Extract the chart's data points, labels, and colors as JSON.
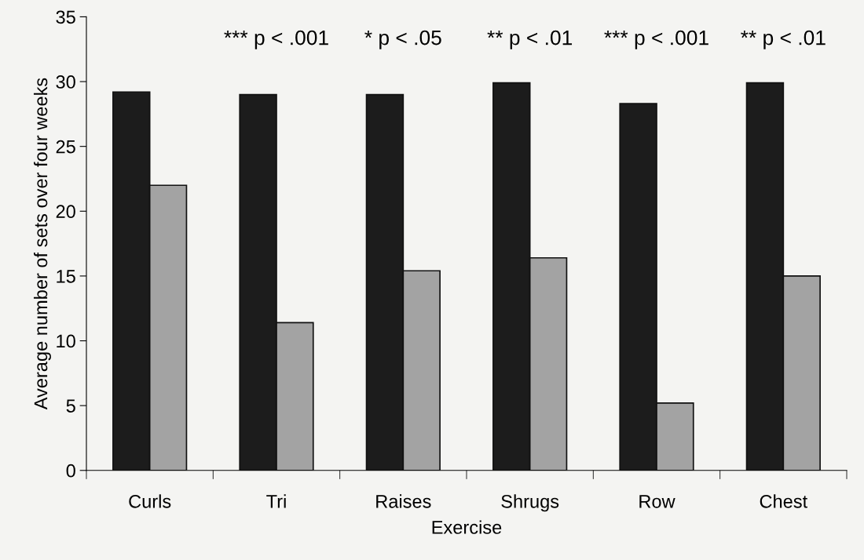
{
  "chart_data": {
    "type": "bar",
    "xlabel": "Exercise",
    "ylabel": "Average number of sets over four weeks",
    "categories": [
      "Curls",
      "Tri",
      "Raises",
      "Shrugs",
      "Row",
      "Chest"
    ],
    "series": [
      {
        "color": "#1c1c1c",
        "values": [
          29.2,
          29.0,
          29.0,
          29.9,
          28.3,
          29.9
        ]
      },
      {
        "color": "#a3a3a3",
        "values": [
          22.0,
          11.4,
          15.4,
          16.4,
          5.2,
          15.0
        ]
      }
    ],
    "ylim": [
      0,
      35
    ],
    "yticks": [
      0,
      5,
      10,
      15,
      20,
      25,
      30,
      35
    ],
    "grid": false,
    "annotations": [
      "*** p < .001",
      "* p < .05",
      "** p < .01",
      "*** p < .001",
      "** p < .01"
    ]
  }
}
